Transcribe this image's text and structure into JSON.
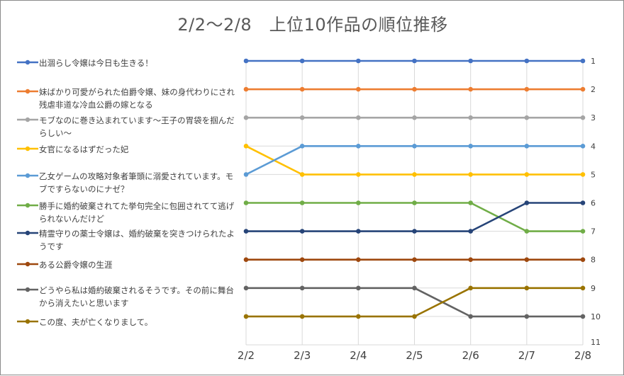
{
  "chart_data": {
    "type": "line",
    "title": "2/2〜2/8　上位10作品の順位推移",
    "xlabel": "",
    "ylabel": "",
    "categories": [
      "2/2",
      "2/3",
      "2/4",
      "2/5",
      "2/6",
      "2/7",
      "2/8"
    ],
    "y_axis": {
      "reversed": true,
      "position": "right",
      "ticks": [
        "1",
        "2",
        "3",
        "4",
        "5",
        "6",
        "7",
        "8",
        "9",
        "10",
        "11"
      ],
      "ylim": [
        1,
        11
      ]
    },
    "grid": true,
    "legend_position": "left",
    "series": [
      {
        "name": "出涸らし令嬢は今日も生きる！",
        "color": "#4472c4",
        "values": [
          1,
          1,
          1,
          1,
          1,
          1,
          1
        ]
      },
      {
        "name": "妹ばかり可愛がられた伯爵令嬢、妹の身代わりにされ残虐非道な冷血公爵の嫁となる",
        "color": "#ed7d31",
        "values": [
          2,
          2,
          2,
          2,
          2,
          2,
          2
        ]
      },
      {
        "name": "モブなのに巻き込まれています〜王子の胃袋を掴んだらしい〜",
        "color": "#a5a5a5",
        "values": [
          3,
          3,
          3,
          3,
          3,
          3,
          3
        ]
      },
      {
        "name": "女官になるはずだった妃",
        "color": "#ffc000",
        "values": [
          4,
          5,
          5,
          5,
          5,
          5,
          5
        ]
      },
      {
        "name": "乙女ゲームの攻略対象者筆頭に溺愛されています。モブですらないのにナゼ？",
        "color": "#5b9bd5",
        "values": [
          5,
          4,
          4,
          4,
          4,
          4,
          4
        ]
      },
      {
        "name": "勝手に婚約破棄されてた挙句完全に包囲されてて逃げられないんだけど",
        "color": "#70ad47",
        "values": [
          6,
          6,
          6,
          6,
          6,
          7,
          7
        ]
      },
      {
        "name": "精霊守りの薬士令嬢は、婚約破棄を突きつけられたようです",
        "color": "#264478",
        "values": [
          7,
          7,
          7,
          7,
          7,
          6,
          6
        ]
      },
      {
        "name": "ある公爵令嬢の生涯",
        "color": "#9e480e",
        "values": [
          8,
          8,
          8,
          8,
          8,
          8,
          8
        ]
      },
      {
        "name": "どうやら私は婚約破棄されるそうです。その前に舞台から消えたいと思います",
        "color": "#636363",
        "values": [
          9,
          9,
          9,
          9,
          10,
          10,
          10
        ]
      },
      {
        "name": "この度、夫が亡くなりまして。",
        "color": "#997300",
        "values": [
          10,
          10,
          10,
          10,
          9,
          9,
          9
        ]
      }
    ]
  }
}
